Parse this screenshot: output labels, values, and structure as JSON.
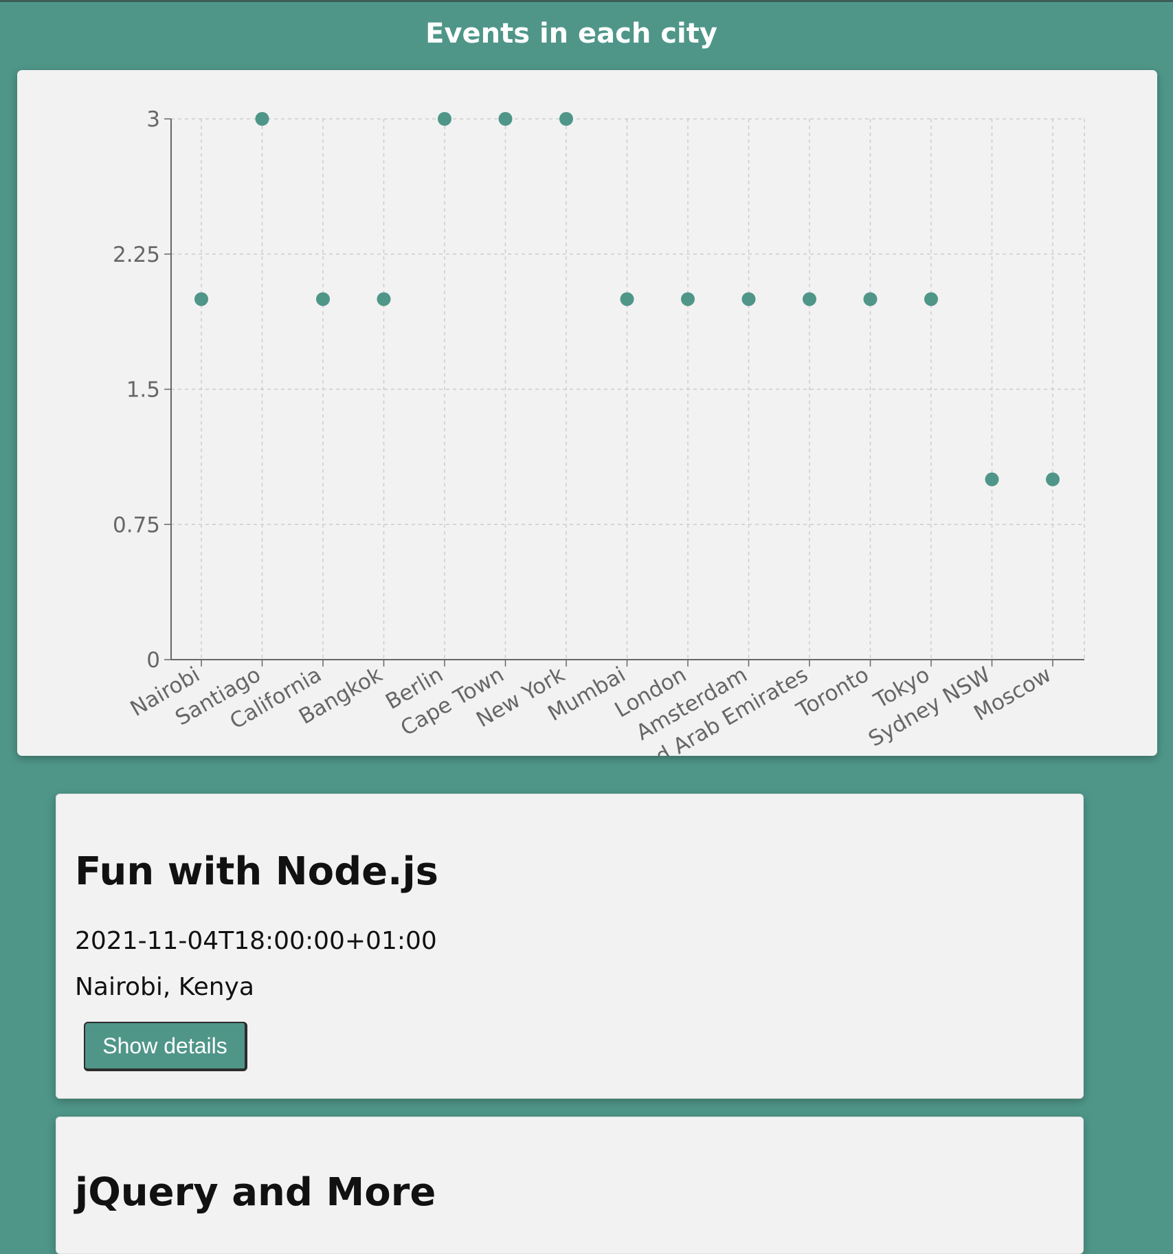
{
  "chart_data": {
    "type": "scatter",
    "title": "Events in each city",
    "xlabel": "",
    "ylabel": "",
    "categories": [
      "Nairobi",
      "Santiago",
      "California",
      "Bangkok",
      "Berlin",
      "Cape Town",
      "New York",
      "Mumbai",
      "London",
      "Amsterdam",
      "United Arab Emirates",
      "Toronto",
      "Tokyo",
      "Sydney NSW",
      "Moscow"
    ],
    "values": [
      2,
      3,
      2,
      2,
      3,
      3,
      3,
      2,
      2,
      2,
      2,
      2,
      2,
      1,
      1
    ],
    "ylim": [
      0,
      3
    ],
    "yticks": [
      "0",
      "0.75",
      "1.5",
      "2.25",
      "3"
    ],
    "grid": true,
    "point_color": "#4f9689"
  },
  "events": [
    {
      "title": "Fun with Node.js",
      "start": "2021-11-04T18:00:00+01:00",
      "location": "Nairobi, Kenya",
      "button_label": "Show details"
    },
    {
      "title": "jQuery and More"
    }
  ],
  "colors": {
    "background": "#4f9689",
    "card": "#f2f2f2",
    "accent": "#4f9689"
  }
}
